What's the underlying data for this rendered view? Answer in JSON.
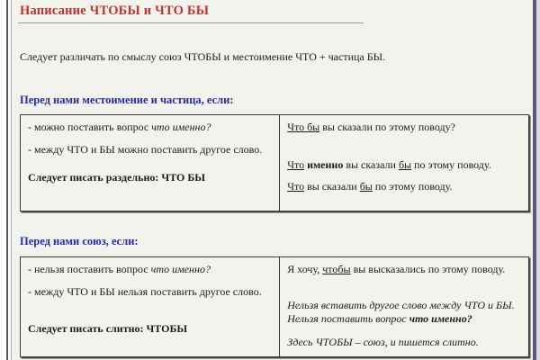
{
  "colors": {
    "page_bg": "#f1f3ec",
    "frame_purple": "#5f5577",
    "title_red": "#c5302e",
    "heading_blue": "#2727b5"
  },
  "title": "Написание ЧТОБЫ и ЧТО БЫ",
  "intro": "Следует различать по смыслу союз ЧТОБЫ и местоимение ЧТО + частица БЫ.",
  "section_pronoun": {
    "heading": "Перед нами местоимение и частица, если:",
    "rules": {
      "rule1_text": "- можно поставить вопрос ",
      "rule1_italic": "что именно?",
      "rule2": "- между ЧТО и БЫ можно поставить другое слово.",
      "conclusion": "Следует писать раздельно: ЧТО БЫ"
    },
    "examples": {
      "ex1": {
        "u1": "Что бы",
        "rest": " вы сказали по этому поводу?"
      },
      "ex2": {
        "u1": "Что",
        "sep": " ",
        "bold": "именно",
        "mid": " вы сказали ",
        "u2": "бы",
        "rest": " по этому поводу."
      },
      "ex3": {
        "u1": "Что",
        "mid": " вы сказали ",
        "u2": "бы",
        "rest": " по этому поводу."
      }
    }
  },
  "section_conjunction": {
    "heading": "Перед нами союз, если:",
    "rules": {
      "rule1_text": "- нельзя поставить вопрос ",
      "rule1_italic": "что именно?",
      "rule2": "- между ЧТО и БЫ нельзя поставить другое слово.",
      "conclusion": "Следует писать слитно: ЧТОБЫ"
    },
    "examples": {
      "ex1": {
        "pre": "Я хочу, ",
        "u1": "чтобы",
        "rest": " вы высказались по этому поводу."
      },
      "note_line1": "Нельзя вставить другое слово между ЧТО и БЫ.",
      "note_line2_text": "Нельзя поставить вопрос ",
      "note_line2_bold": "что именно?",
      "note_final": "Здесь ЧТОБЫ – союз, и пишется слитно."
    }
  }
}
